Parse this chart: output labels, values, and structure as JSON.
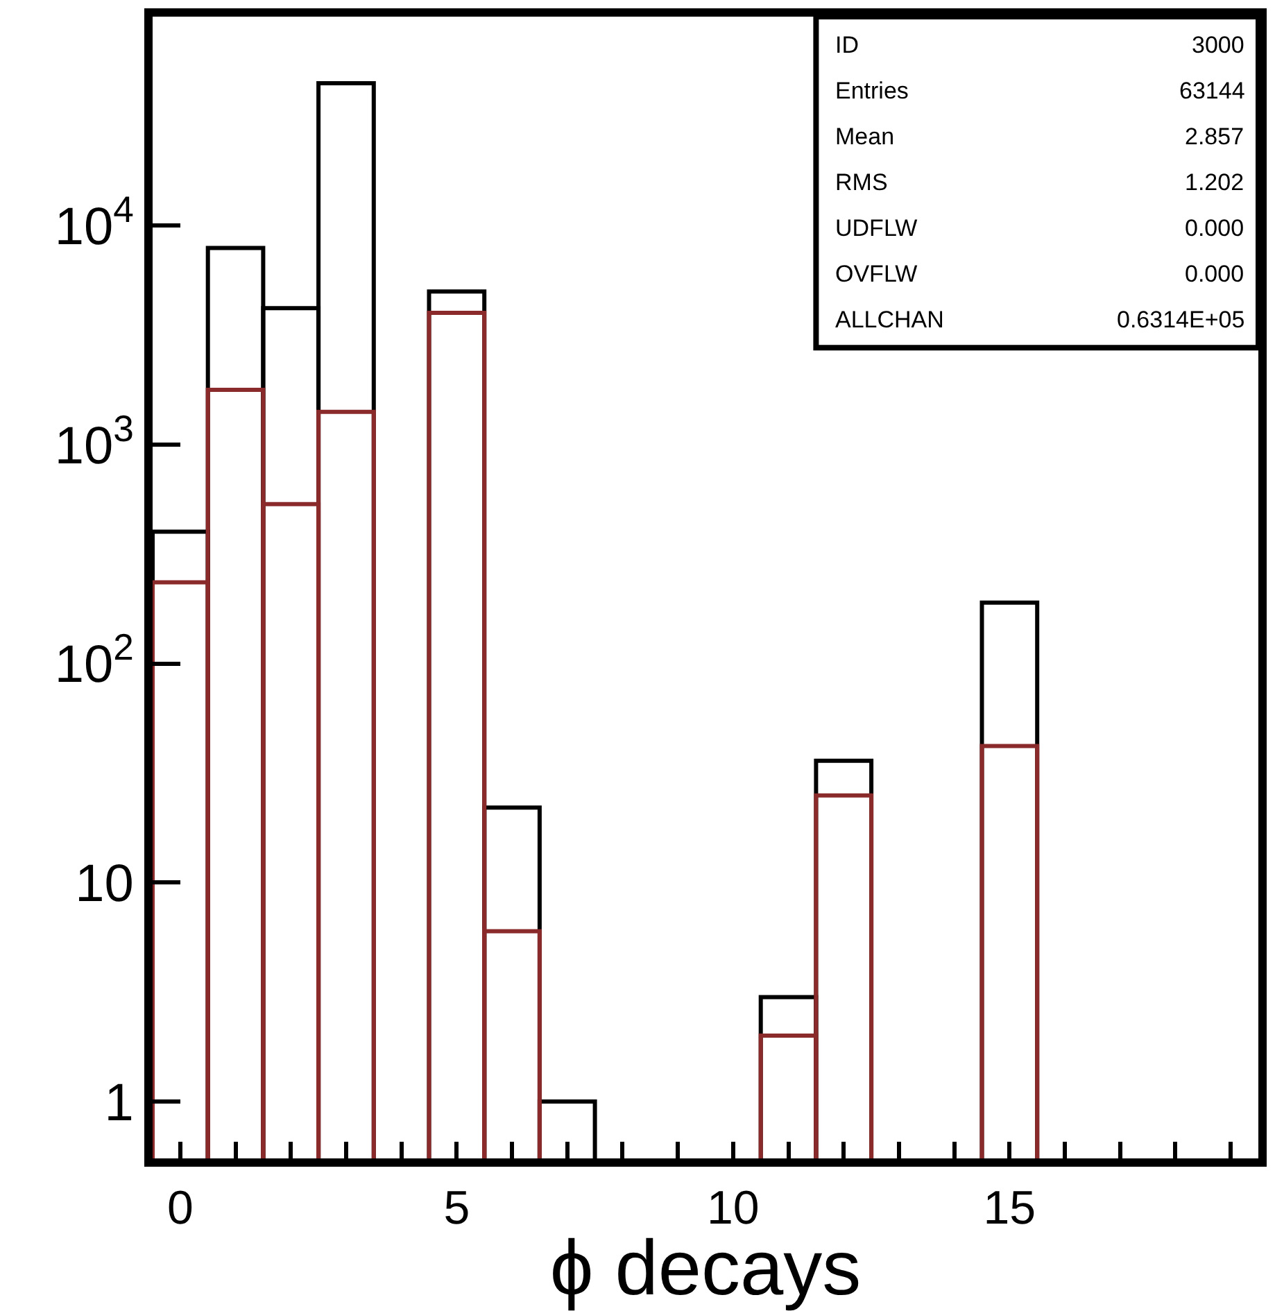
{
  "chart_data": {
    "type": "histogram",
    "xlabel": "ϕ decays",
    "bins": [
      -0.5,
      0.5,
      1.5,
      2.5,
      3.5,
      4.5,
      5.5,
      6.5,
      7.5,
      8.5,
      9.5,
      10.5,
      11.5,
      12.5,
      13.5,
      14.5,
      15.5
    ],
    "series": [
      {
        "color": "#000000",
        "values": [
          400,
          7900,
          4200,
          44700,
          null,
          5000,
          22,
          1,
          null,
          null,
          null,
          3,
          36,
          null,
          null,
          190
        ]
      },
      {
        "color": "#8b2a2a",
        "values": [
          235,
          1780,
          535,
          1410,
          null,
          4000,
          6,
          null,
          null,
          null,
          null,
          2,
          25,
          null,
          null,
          42
        ]
      }
    ],
    "log": "y",
    "xlim": [
      -0.5,
      19.5
    ],
    "ylim": [
      0.55,
      90000
    ],
    "xticks": [
      0,
      {
        "value": 1,
        "label": null
      },
      {
        "value": 2,
        "label": null
      },
      {
        "value": 3,
        "label": null
      },
      {
        "value": 4,
        "label": null
      },
      5,
      {
        "value": 6,
        "label": null
      },
      {
        "value": 7,
        "label": null
      },
      {
        "value": 8,
        "label": null
      },
      {
        "value": 9,
        "label": null
      },
      10,
      {
        "value": 11,
        "label": null
      },
      {
        "value": 12,
        "label": null
      },
      {
        "value": 13,
        "label": null
      },
      {
        "value": 14,
        "label": null
      },
      15,
      {
        "value": 16,
        "label": null
      },
      {
        "value": 17,
        "label": null
      },
      {
        "value": 18,
        "label": null
      },
      {
        "value": 19,
        "label": null
      }
    ],
    "yticks": [
      1,
      10,
      {
        "value": 100,
        "label": "10$^{2}$"
      },
      {
        "value": 1000,
        "label": "10$^{3}$"
      },
      {
        "value": 10000,
        "label": "10$^{4}$"
      }
    ],
    "annotations": [
      "ID",
      "3000",
      "Entries",
      "63144",
      "Mean",
      "2.857",
      "RMS",
      "1.202",
      "UDFLW",
      "0.000",
      "OVFLW",
      "0.000",
      "ALLCHAN",
      "0.6314E+05"
    ]
  }
}
